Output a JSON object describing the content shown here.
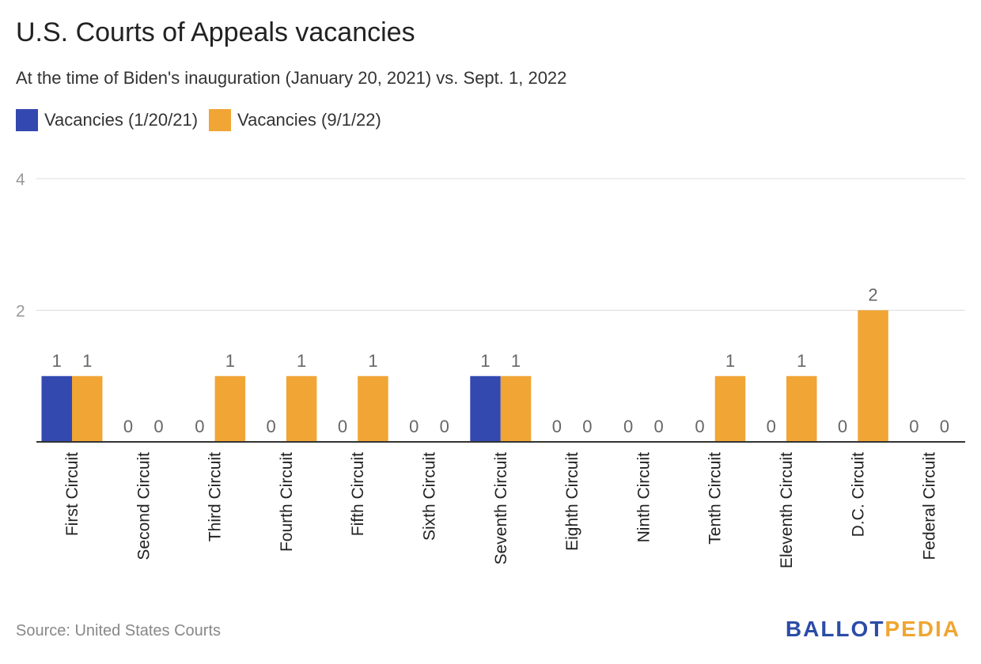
{
  "header": {
    "title": "U.S. Courts of Appeals vacancies",
    "subtitle": "At the time of Biden's inauguration (January 20, 2021) vs. Sept. 1, 2022"
  },
  "footer": {
    "source": "Source: United States Courts",
    "logo_part1": "BALLOT",
    "logo_part2": "PEDIA"
  },
  "colors": {
    "series1": "#3349b0",
    "series2": "#f0a535",
    "grid": "#dddddd",
    "axis": "#333333",
    "tick_text": "#999999",
    "label_text": "#666666"
  },
  "chart_data": {
    "type": "bar",
    "title": "U.S. Courts of Appeals vacancies",
    "subtitle": "At the time of Biden's inauguration (January 20, 2021) vs. Sept. 1, 2022",
    "categories": [
      "First Circuit",
      "Second Circuit",
      "Third Circuit",
      "Fourth Circuit",
      "Fifth Circuit",
      "Sixth Circuit",
      "Seventh Circuit",
      "Eighth Circuit",
      "Ninth Circuit",
      "Tenth Circuit",
      "Eleventh Circuit",
      "D.C. Circuit",
      "Federal Circuit"
    ],
    "series": [
      {
        "name": "Vacancies (1/20/21)",
        "values": [
          1,
          0,
          0,
          0,
          0,
          0,
          1,
          0,
          0,
          0,
          0,
          0,
          0
        ]
      },
      {
        "name": "Vacancies (9/1/22)",
        "values": [
          1,
          0,
          1,
          1,
          1,
          0,
          1,
          0,
          0,
          1,
          1,
          2,
          0
        ]
      }
    ],
    "ylim": [
      0,
      4
    ],
    "yticks": [
      2,
      4
    ],
    "xlabel": "",
    "ylabel": "",
    "grid": true,
    "legend": "top-left",
    "data_labels": true
  }
}
